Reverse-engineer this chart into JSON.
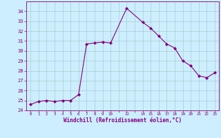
{
  "x": [
    0,
    1,
    2,
    3,
    4,
    5,
    6,
    7,
    8,
    9,
    10,
    12,
    14,
    15,
    16,
    17,
    18,
    19,
    20,
    21,
    22,
    23
  ],
  "y": [
    24.6,
    24.9,
    25.0,
    24.9,
    25.0,
    25.0,
    25.6,
    30.7,
    30.8,
    30.9,
    30.8,
    34.3,
    32.9,
    32.3,
    31.5,
    30.7,
    30.3,
    29.0,
    28.5,
    27.5,
    27.3,
    27.8
  ],
  "line_color": "#800080",
  "marker_color": "#800080",
  "bg_color": "#cceeff",
  "grid_color": "#aacccc",
  "xlabel": "Windchill (Refroidissement éolien,°C)",
  "xtick_labels": [
    "0",
    "1",
    "2",
    "3",
    "4",
    "5",
    "6",
    "7",
    "8",
    "9",
    "10",
    "",
    "12",
    "",
    "14",
    "15",
    "16",
    "17",
    "18",
    "19",
    "20",
    "21",
    "22",
    "23"
  ],
  "ylim": [
    24,
    35
  ],
  "xlim": [
    -0.5,
    23.5
  ],
  "yticks": [
    24,
    25,
    26,
    27,
    28,
    29,
    30,
    31,
    32,
    33,
    34
  ],
  "text_color": "#800080"
}
